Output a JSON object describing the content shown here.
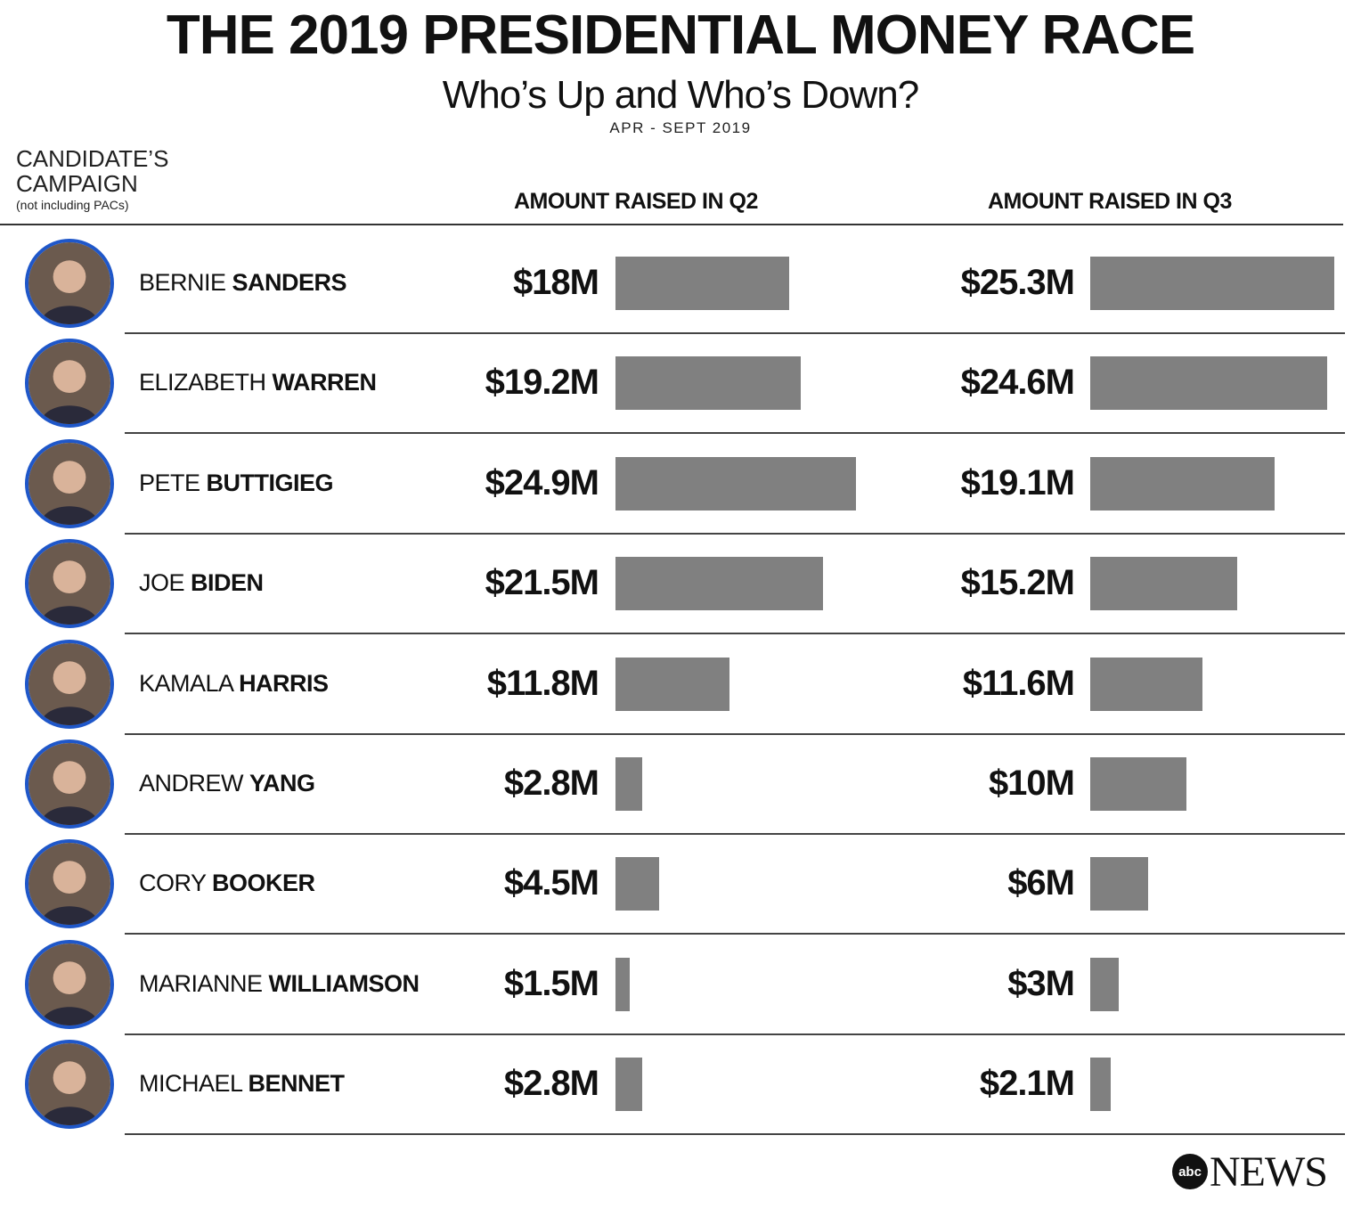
{
  "header": {
    "title": "THE 2019 PRESIDENTIAL MONEY RACE",
    "subtitle": "Who’s Up and Who’s Down?",
    "dates": "APR - SEPT 2019"
  },
  "columns": {
    "candidate_line1": "CANDIDATE’S",
    "candidate_line2": "CAMPAIGN",
    "candidate_note": "(not including PACs)",
    "q2": "AMOUNT RAISED IN Q2",
    "q3": "AMOUNT RAISED IN Q3"
  },
  "colors": {
    "bar": "#808080",
    "avatar_ring": "#1f57c9"
  },
  "chart_data": {
    "type": "bar",
    "title": "THE 2019 PRESIDENTIAL MONEY RACE",
    "subtitle": "Who’s Up and Who’s Down?",
    "unit": "$M",
    "series": [
      {
        "name": "AMOUNT RAISED IN Q2",
        "values": [
          18,
          19.2,
          24.9,
          21.5,
          11.8,
          2.8,
          4.5,
          1.5,
          2.8
        ]
      },
      {
        "name": "AMOUNT RAISED IN Q3",
        "values": [
          25.3,
          24.6,
          19.1,
          15.2,
          11.6,
          10,
          6,
          3,
          2.1
        ]
      }
    ],
    "rows": [
      {
        "first": "BERNIE",
        "last": "SANDERS",
        "q2_label": "$18M",
        "q3_label": "$25.3M",
        "photo": "portrait-icon"
      },
      {
        "first": "ELIZABETH",
        "last": "WARREN",
        "q2_label": "$19.2M",
        "q3_label": "$24.6M",
        "photo": "portrait-icon"
      },
      {
        "first": "PETE",
        "last": "BUTTIGIEG",
        "q2_label": "$24.9M",
        "q3_label": "$19.1M",
        "photo": "portrait-icon"
      },
      {
        "first": "JOE",
        "last": "BIDEN",
        "q2_label": "$21.5M",
        "q3_label": "$15.2M",
        "photo": "portrait-icon"
      },
      {
        "first": "KAMALA",
        "last": "HARRIS",
        "q2_label": "$11.8M",
        "q3_label": "$11.6M",
        "photo": "portrait-icon"
      },
      {
        "first": "ANDREW",
        "last": "YANG",
        "q2_label": "$2.8M",
        "q3_label": "$10M",
        "photo": "portrait-icon"
      },
      {
        "first": "CORY",
        "last": "BOOKER",
        "q2_label": "$4.5M",
        "q3_label": "$6M",
        "photo": "portrait-icon"
      },
      {
        "first": "MARIANNE",
        "last": "WILLIAMSON",
        "q2_label": "$1.5M",
        "q3_label": "$3M",
        "photo": "portrait-icon"
      },
      {
        "first": "MICHAEL",
        "last": "BENNET",
        "q2_label": "$2.8M",
        "q3_label": "$2.1M",
        "photo": "portrait-icon"
      }
    ],
    "xlim": [
      0,
      25.3
    ]
  },
  "logo": {
    "badge": "abc",
    "text": "NEWS"
  }
}
